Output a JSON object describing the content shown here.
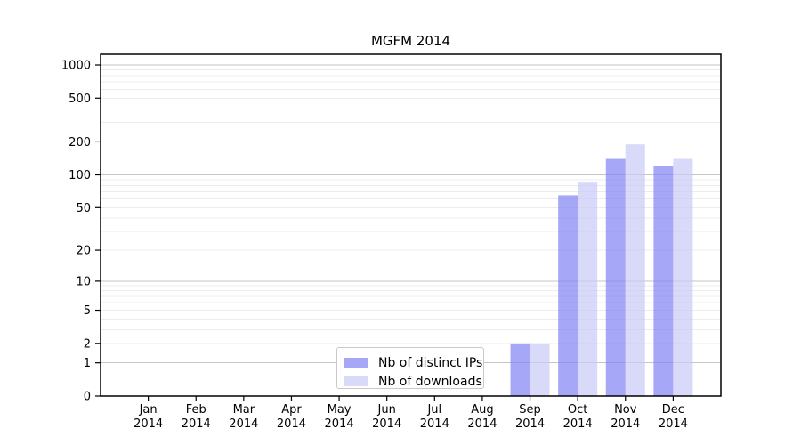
{
  "chart_data": {
    "type": "bar",
    "title": "MGFM 2014",
    "x_year": "2014",
    "categories": [
      "Jan",
      "Feb",
      "Mar",
      "Apr",
      "May",
      "Jun",
      "Jul",
      "Aug",
      "Sep",
      "Oct",
      "Nov",
      "Dec"
    ],
    "series": [
      {
        "name": "Nb of distinct IPs",
        "color": "#8181f4",
        "opacity": 0.7,
        "values": [
          0,
          0,
          0,
          0,
          0,
          0,
          0,
          0,
          2,
          65,
          140,
          120
        ]
      },
      {
        "name": "Nb of downloads",
        "color": "#c9c9f8",
        "opacity": 0.7,
        "values": [
          0,
          0,
          0,
          0,
          0,
          0,
          0,
          0,
          2,
          85,
          190,
          140
        ]
      }
    ],
    "y_scale": "log1p",
    "y_ticks": [
      0,
      1,
      2,
      5,
      10,
      20,
      50,
      100,
      200,
      500,
      1000
    ],
    "y_major_gridlines": [
      1,
      10,
      100,
      1000
    ],
    "ylim": [
      0,
      1000
    ],
    "grid": {
      "major": true,
      "minor": true
    },
    "legend_position": "lower center",
    "colors": {
      "background": "#ffffff",
      "axis": "#000000",
      "text": "#000000",
      "major_grid": "#c6c6c6",
      "minor_grid": "#ececec",
      "legend_border": "#c9c9c9"
    }
  }
}
